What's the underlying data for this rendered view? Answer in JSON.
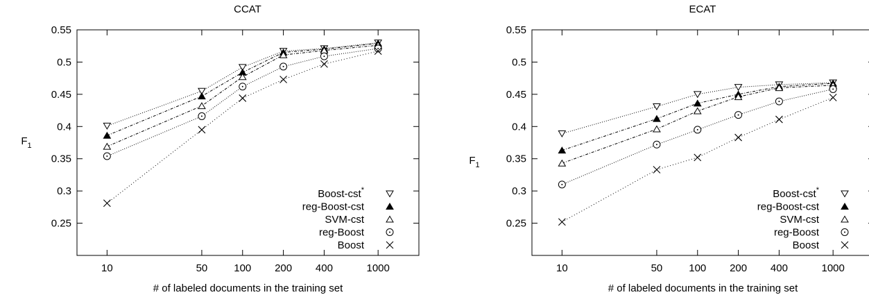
{
  "chart_data": [
    {
      "type": "line",
      "title": "CCAT",
      "xlabel": "# of labeled documents in the training set",
      "ylabel": "F",
      "ylabel_sub": "1",
      "x_scale": "log",
      "x": [
        10,
        50,
        100,
        200,
        400,
        1000
      ],
      "x_ticks": [
        10,
        50,
        100,
        200,
        400,
        1000
      ],
      "xlim": [
        6,
        2000
      ],
      "ylim": [
        0.2,
        0.55
      ],
      "y_ticks": [
        "0.25",
        "0.3",
        "0.35",
        "0.4",
        "0.45",
        "0.5",
        "0.55"
      ],
      "legend_position": "bottom-right",
      "series": [
        {
          "name": "Boost-cst",
          "name_sup": "*",
          "marker": "triangle-down-open",
          "values": [
            0.401,
            0.455,
            0.492,
            0.517,
            0.521,
            0.53
          ]
        },
        {
          "name": "reg-Boost-cst",
          "marker": "triangle-filled",
          "values": [
            0.386,
            0.447,
            0.484,
            0.515,
            0.52,
            0.529
          ]
        },
        {
          "name": "SVM-cst",
          "marker": "triangle-open",
          "values": [
            0.369,
            0.432,
            0.477,
            0.511,
            0.518,
            0.526
          ]
        },
        {
          "name": "reg-Boost",
          "marker": "circle-open",
          "values": [
            0.354,
            0.416,
            0.462,
            0.493,
            0.509,
            0.521
          ]
        },
        {
          "name": "Boost",
          "marker": "cross",
          "values": [
            0.281,
            0.395,
            0.444,
            0.473,
            0.497,
            0.517
          ]
        }
      ]
    },
    {
      "type": "line",
      "title": "ECAT",
      "xlabel": "# of labeled documents in the training set",
      "ylabel": "F",
      "ylabel_sub": "1",
      "x_scale": "log",
      "x": [
        10,
        50,
        100,
        200,
        400,
        1000
      ],
      "x_ticks": [
        10,
        50,
        100,
        200,
        400,
        1000
      ],
      "xlim": [
        6,
        2000
      ],
      "ylim": [
        0.2,
        0.55
      ],
      "y_ticks": [
        "0.25",
        "0.3",
        "0.35",
        "0.4",
        "0.45",
        "0.5",
        "0.55"
      ],
      "legend_position": "bottom-right",
      "series": [
        {
          "name": "Boost-cst",
          "name_sup": "*",
          "marker": "triangle-down-open",
          "values": [
            0.389,
            0.431,
            0.45,
            0.461,
            0.465,
            0.468
          ]
        },
        {
          "name": "reg-Boost-cst",
          "marker": "triangle-filled",
          "values": [
            0.363,
            0.412,
            0.436,
            0.45,
            0.462,
            0.467
          ]
        },
        {
          "name": "SVM-cst",
          "marker": "triangle-open",
          "values": [
            0.343,
            0.396,
            0.424,
            0.446,
            0.46,
            0.464
          ]
        },
        {
          "name": "reg-Boost",
          "marker": "circle-open",
          "values": [
            0.31,
            0.372,
            0.395,
            0.418,
            0.439,
            0.458
          ]
        },
        {
          "name": "Boost",
          "marker": "cross",
          "values": [
            0.252,
            0.333,
            0.352,
            0.383,
            0.411,
            0.445
          ]
        }
      ]
    }
  ]
}
